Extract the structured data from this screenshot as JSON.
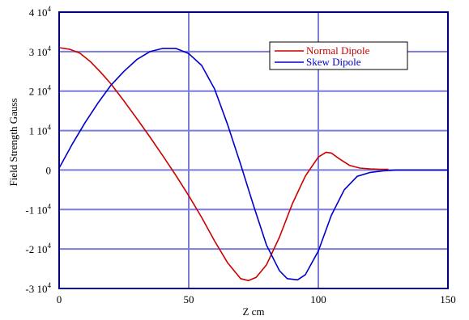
{
  "chart_data": {
    "type": "line",
    "title": "",
    "xlabel": "Z cm",
    "ylabel": "Field Strength  Gauss",
    "xlim": [
      0,
      150
    ],
    "ylim": [
      -30000,
      40000
    ],
    "grid": true,
    "legend_position": "top-right",
    "x_ticks": [
      {
        "value": 0,
        "label": "0"
      },
      {
        "value": 50,
        "label": "50"
      },
      {
        "value": 100,
        "label": "100"
      },
      {
        "value": 150,
        "label": "150"
      }
    ],
    "y_ticks": [
      {
        "value": 40000,
        "mant": "4 10",
        "exp": "4"
      },
      {
        "value": 30000,
        "mant": "3 10",
        "exp": "4"
      },
      {
        "value": 20000,
        "mant": "2 10",
        "exp": "4"
      },
      {
        "value": 10000,
        "mant": "1 10",
        "exp": "4"
      },
      {
        "value": 0,
        "mant": "0",
        "exp": ""
      },
      {
        "value": -10000,
        "mant": "-1 10",
        "exp": "4"
      },
      {
        "value": -20000,
        "mant": "-2 10",
        "exp": "4"
      },
      {
        "value": -30000,
        "mant": "-3 10",
        "exp": "4"
      }
    ],
    "colors": {
      "grid": "#7b7bdc",
      "frame": "#000080"
    },
    "series": [
      {
        "name": "Normal Dipole",
        "color": "#cc0000",
        "x": [
          0,
          4,
          8,
          12,
          16,
          20,
          25,
          30,
          35,
          40,
          45,
          50,
          55,
          60,
          65,
          70,
          73,
          76,
          80,
          85,
          90,
          95,
          100,
          103,
          105,
          108,
          112,
          116,
          120,
          124,
          127
        ],
        "y": [
          31000,
          30600,
          29600,
          27500,
          24800,
          21800,
          17500,
          13000,
          8400,
          3600,
          -1300,
          -6500,
          -12000,
          -18000,
          -23500,
          -27500,
          -28000,
          -27200,
          -24000,
          -17000,
          -8500,
          -1500,
          3300,
          4500,
          4300,
          2900,
          1200,
          500,
          300,
          200,
          200
        ]
      },
      {
        "name": "Skew Dipole",
        "color": "#0000cc",
        "x": [
          0,
          5,
          10,
          15,
          20,
          25,
          30,
          35,
          40,
          45,
          50,
          55,
          60,
          65,
          70,
          75,
          80,
          85,
          88,
          92,
          95,
          100,
          105,
          110,
          115,
          120,
          125,
          130,
          140,
          150
        ],
        "y": [
          500,
          6500,
          12000,
          17000,
          21500,
          25000,
          28000,
          30000,
          30800,
          30800,
          29500,
          26500,
          20500,
          11500,
          1500,
          -9000,
          -19000,
          -25500,
          -27500,
          -27800,
          -26500,
          -20500,
          -11500,
          -5000,
          -1600,
          -600,
          -200,
          0,
          0,
          0
        ]
      }
    ]
  }
}
